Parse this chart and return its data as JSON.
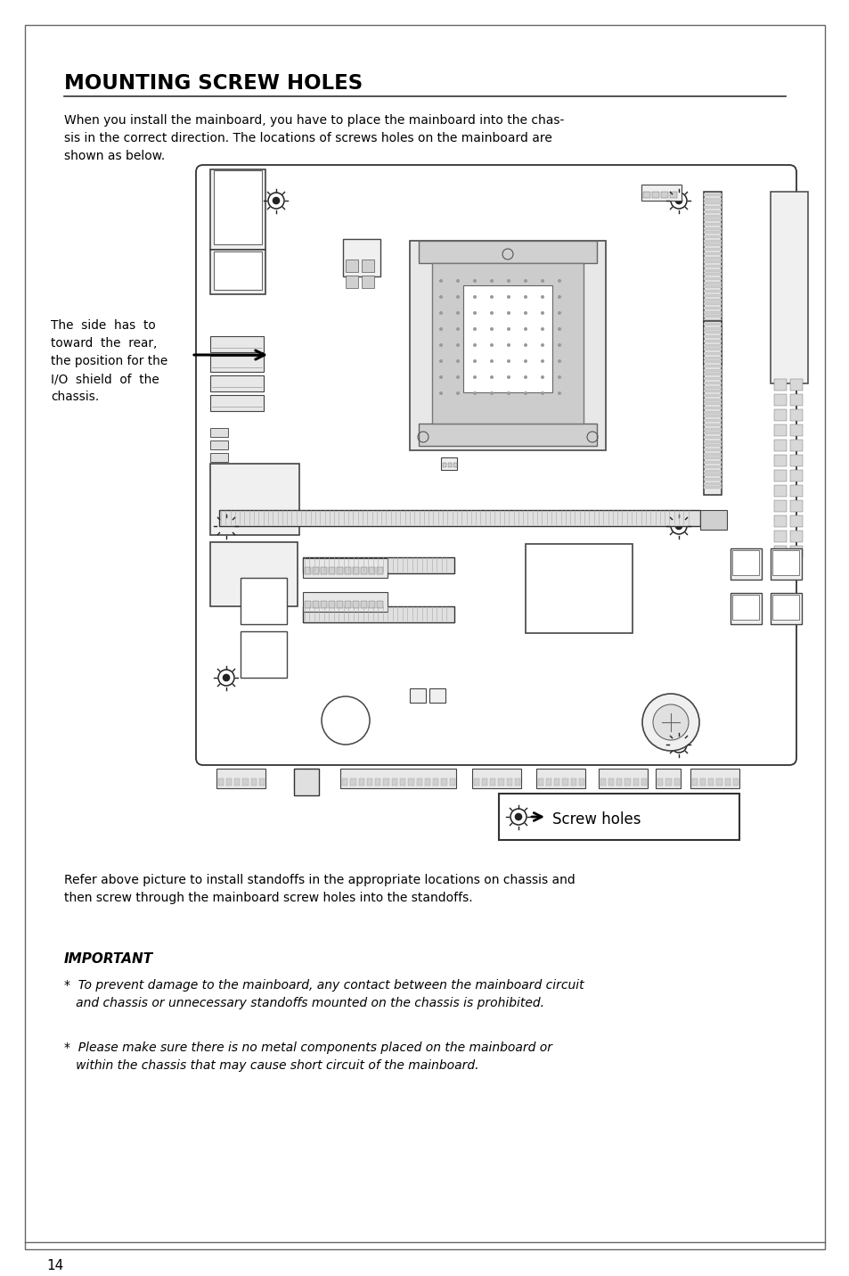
{
  "bg_color": "#ffffff",
  "title": "MOUNTING SCREW HOLES",
  "intro_text": "When you install the mainboard, you have to place the mainboard into the chas-\nsis in the correct direction. The locations of screws holes on the mainboard are\nshown as below.",
  "side_note": "The  side  has  to\ntoward  the  rear,\nthe position for the\nI/O  shield  of  the\nchassis.",
  "refer_text": "Refer above picture to install standoffs in the appropriate locations on chassis and\nthen screw through the mainboard screw holes into the standoffs.",
  "important_label": "IMPORTANT",
  "bullet1": "*  To prevent damage to the mainboard, any contact between the mainboard circuit\n   and chassis or unnecessary standoffs mounted on the chassis is prohibited.",
  "bullet2": "*  Please make sure there is no metal components placed on the mainboard or\n   within the chassis that may cause short circuit of the mainboard.",
  "legend_text": "Screw holes",
  "page_number": "14",
  "text_color": "#000000"
}
